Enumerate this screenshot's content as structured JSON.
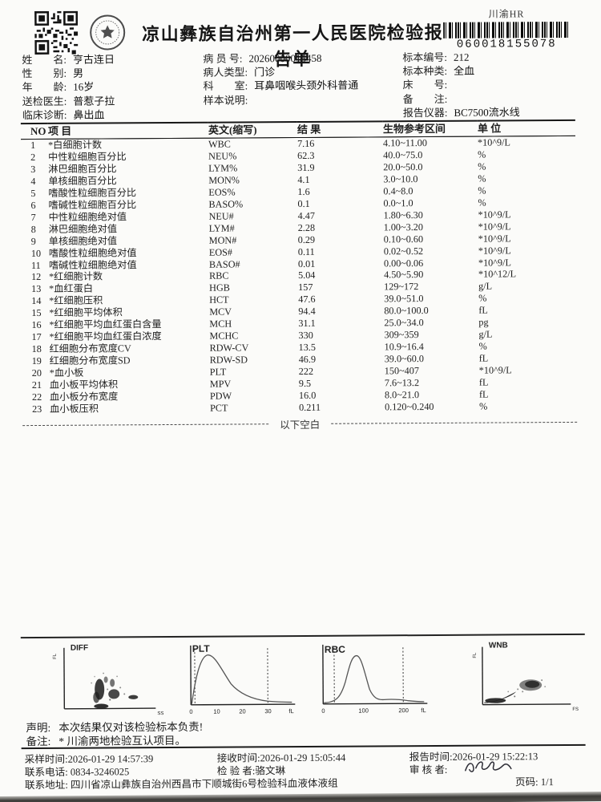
{
  "header": {
    "title": "凉山彝族自治州第一人民医院检验报告单",
    "barcode_label": "川渝HR",
    "barcode_number": "060018155078"
  },
  "patient": {
    "columns": [
      [
        {
          "label": "姓　　名:",
          "value": "亨古连日"
        },
        {
          "label": "性　　别:",
          "value": "男"
        },
        {
          "label": "年　　龄:",
          "value": "16岁"
        },
        {
          "label": "送检医生:",
          "value": "普惹子拉"
        },
        {
          "label": "临床诊断:",
          "value": "鼻出血"
        }
      ],
      [
        {
          "label": "病 员 号:",
          "value": "20260000015458"
        },
        {
          "label": "病人类型:",
          "value": "门诊"
        },
        {
          "label": "科　　室:",
          "value": "耳鼻咽喉头颈外科普通"
        },
        {
          "label": "样本说明:",
          "value": ""
        },
        {
          "label": "",
          "value": ""
        }
      ],
      [
        {
          "label": "标本编号:",
          "value": "212"
        },
        {
          "label": "标本种类:",
          "value": "全血"
        },
        {
          "label": "床　　号:",
          "value": ""
        },
        {
          "label": "备　　注:",
          "value": ""
        },
        {
          "label": "报告仪器:",
          "value": "BC7500流水线"
        }
      ]
    ]
  },
  "table": {
    "headers": [
      "NO",
      "项 目",
      "英文(缩写)",
      "结 果",
      "生物参考区间",
      "单 位"
    ],
    "rows": [
      {
        "no": "1",
        "item": "*白细胞计数",
        "en": "WBC",
        "result": "7.16",
        "range": "4.10~11.00",
        "unit": "*10^9/L"
      },
      {
        "no": "2",
        "item": "中性粒细胞百分比",
        "en": "NEU%",
        "result": "62.3",
        "range": "40.0~75.0",
        "unit": "%"
      },
      {
        "no": "3",
        "item": "淋巴细胞百分比",
        "en": "LYM%",
        "result": "31.9",
        "range": "20.0~50.0",
        "unit": "%"
      },
      {
        "no": "4",
        "item": "单核细胞百分比",
        "en": "MON%",
        "result": "4.1",
        "range": "3.0~10.0",
        "unit": "%"
      },
      {
        "no": "5",
        "item": "嗜酸性粒细胞百分比",
        "en": "EOS%",
        "result": "1.6",
        "range": "0.4~8.0",
        "unit": "%"
      },
      {
        "no": "6",
        "item": "嗜碱性粒细胞百分比",
        "en": "BASO%",
        "result": "0.1",
        "range": "0.0~1.0",
        "unit": "%"
      },
      {
        "no": "7",
        "item": "中性粒细胞绝对值",
        "en": "NEU#",
        "result": "4.47",
        "range": "1.80~6.30",
        "unit": "*10^9/L"
      },
      {
        "no": "8",
        "item": "淋巴细胞绝对值",
        "en": "LYM#",
        "result": "2.28",
        "range": "1.00~3.20",
        "unit": "*10^9/L"
      },
      {
        "no": "9",
        "item": "单核细胞绝对值",
        "en": "MON#",
        "result": "0.29",
        "range": "0.10~0.60",
        "unit": "*10^9/L"
      },
      {
        "no": "10",
        "item": "嗜酸性粒细胞绝对值",
        "en": "EOS#",
        "result": "0.11",
        "range": "0.02~0.52",
        "unit": "*10^9/L"
      },
      {
        "no": "11",
        "item": "嗜碱性粒细胞绝对值",
        "en": "BASO#",
        "result": "0.01",
        "range": "0.00~0.06",
        "unit": "*10^9/L"
      },
      {
        "no": "12",
        "item": "*红细胞计数",
        "en": "RBC",
        "result": "5.04",
        "range": "4.50~5.90",
        "unit": "*10^12/L"
      },
      {
        "no": "13",
        "item": "*血红蛋白",
        "en": "HGB",
        "result": "157",
        "range": "129~172",
        "unit": "g/L"
      },
      {
        "no": "14",
        "item": "*红细胞压积",
        "en": "HCT",
        "result": "47.6",
        "range": "39.0~51.0",
        "unit": "%"
      },
      {
        "no": "15",
        "item": "*红细胞平均体积",
        "en": "MCV",
        "result": "94.4",
        "range": "80.0~100.0",
        "unit": "fL"
      },
      {
        "no": "16",
        "item": "*红细胞平均血红蛋白含量",
        "en": "MCH",
        "result": "31.1",
        "range": "25.0~34.0",
        "unit": "pg"
      },
      {
        "no": "17",
        "item": "*红细胞平均血红蛋白浓度",
        "en": "MCHC",
        "result": "330",
        "range": "309~359",
        "unit": "g/L"
      },
      {
        "no": "18",
        "item": "红细胞分布宽度CV",
        "en": "RDW-CV",
        "result": "13.5",
        "range": "10.9~16.4",
        "unit": "%"
      },
      {
        "no": "19",
        "item": "红细胞分布宽度SD",
        "en": "RDW-SD",
        "result": "46.9",
        "range": "39.0~60.0",
        "unit": "fL"
      },
      {
        "no": "20",
        "item": "*血小板",
        "en": "PLT",
        "result": "222",
        "range": "150~407",
        "unit": "*10^9/L"
      },
      {
        "no": "21",
        "item": "血小板平均体积",
        "en": "MPV",
        "result": "9.5",
        "range": "7.6~13.2",
        "unit": "fL"
      },
      {
        "no": "22",
        "item": "血小板分布宽度",
        "en": "PDW",
        "result": "16.0",
        "range": "8.0~21.0",
        "unit": "fL"
      },
      {
        "no": "23",
        "item": "血小板压积",
        "en": "PCT",
        "result": "0.211",
        "range": "0.120~0.240",
        "unit": "%"
      }
    ],
    "blank_note": "以下空白"
  },
  "charts": {
    "diff": {
      "title": "DIFF",
      "y_label": "FL",
      "x_label": "SS"
    },
    "plt": {
      "title": "PLT",
      "tick_labels": [
        "0",
        "10",
        "20",
        "30"
      ],
      "x_unit": "fL"
    },
    "rbc": {
      "title": "RBC",
      "tick_labels": [
        "0",
        "100",
        "200"
      ],
      "x_unit": "fL"
    },
    "wnb": {
      "title": "WNB",
      "y_label": "FL",
      "x_label": "FS"
    }
  },
  "declaration": {
    "statement_label": "声明:",
    "statement": "本次结果仅对该检验标本负责!",
    "note_label": "备注:",
    "note": "* 川渝两地检验互认项目。"
  },
  "footer": {
    "sampling_label": "采样时间:",
    "sampling_time": "2026-01-29 14:57:39",
    "receive_label": "接收时间:",
    "receive_time": "2026-01-29 15:05:44",
    "report_label": "报告时间:",
    "report_time": "2026-01-29 15:22:13",
    "phone_label": "联系电话:",
    "phone": "0834-3246025",
    "tester_label": "检 验 者:",
    "tester": "骆文琳",
    "reviewer_label": "审 核 者:",
    "address_label": "联系地址:",
    "address": "四川省凉山彝族自治州西昌市下顺城街6号检验科血液体液组",
    "page_label": "页码:",
    "page": "1/1"
  }
}
